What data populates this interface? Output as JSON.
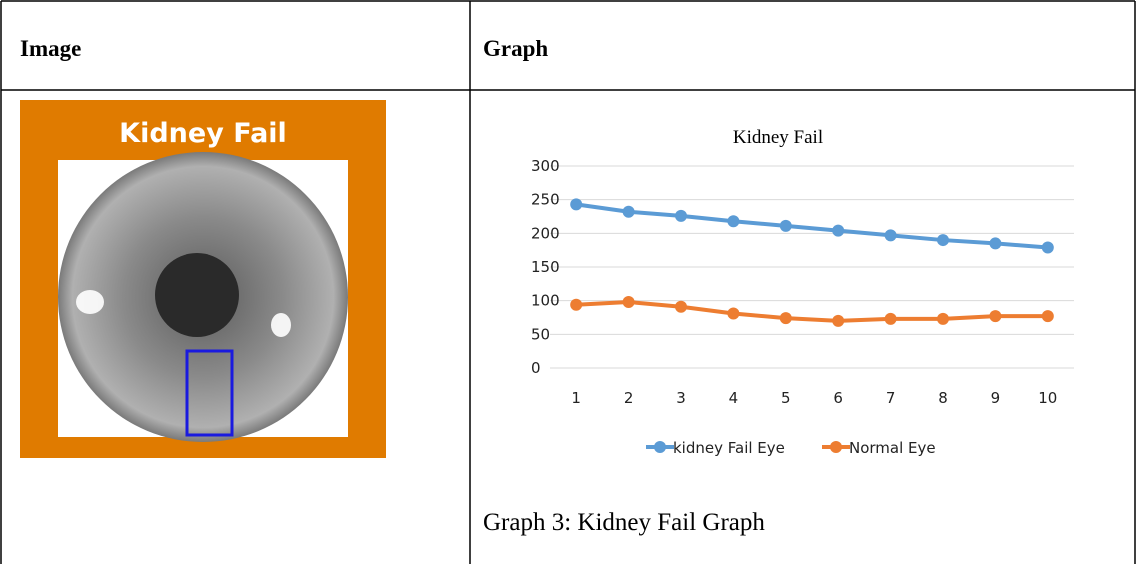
{
  "table": {
    "headers": [
      "Image",
      "Graph"
    ]
  },
  "image": {
    "title": "Kidney Fail"
  },
  "chart_data": {
    "type": "line",
    "title": "Kidney Fail",
    "categories": [
      1,
      2,
      3,
      4,
      5,
      6,
      7,
      8,
      9,
      10
    ],
    "series": [
      {
        "name": "kidney Fail Eye",
        "color": "#5b9bd5",
        "values": [
          243,
          232,
          226,
          218,
          211,
          204,
          197,
          190,
          185,
          179
        ]
      },
      {
        "name": "Normal Eye",
        "color": "#ed7d31",
        "values": [
          94,
          98,
          91,
          81,
          74,
          70,
          73,
          73,
          77,
          77
        ]
      }
    ],
    "ylim": [
      0,
      300
    ],
    "yticks": [
      0,
      50,
      100,
      150,
      200,
      250,
      300
    ],
    "grid": true,
    "legend": "bottom"
  },
  "caption": "Graph 3: Kidney Fail Graph"
}
